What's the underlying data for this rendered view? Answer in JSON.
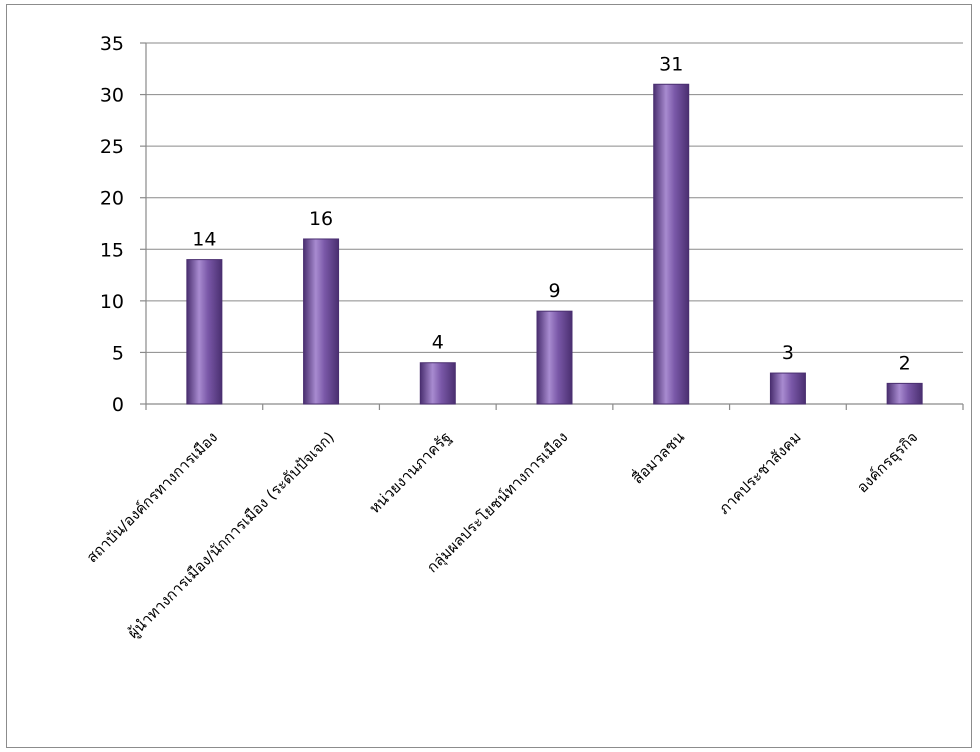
{
  "chart_data": {
    "type": "bar",
    "title": "",
    "xlabel": "",
    "ylabel": "",
    "categories": [
      "สถาบัน/องค์กรทางการเมือง",
      "ผู้นำทางการเมือง/นักการเมือง (ระดับปัจเจก)",
      "หน่วยงานภาครัฐ",
      "กลุ่มผลประโยชน์ทางการเมือง",
      "สื่อมวลชน",
      "ภาคประชาสังคม",
      "องค์กรธุรกิจ"
    ],
    "values": [
      14,
      16,
      4,
      9,
      31,
      3,
      2
    ],
    "ylim": [
      0,
      35
    ],
    "yticks": [
      0,
      5,
      10,
      15,
      20,
      25,
      30,
      35
    ],
    "grid": true,
    "legend": "none",
    "bar_color": "#6f4d9c",
    "bar_highlight": "#a88bd0",
    "bar_dark": "#4a2f70"
  }
}
